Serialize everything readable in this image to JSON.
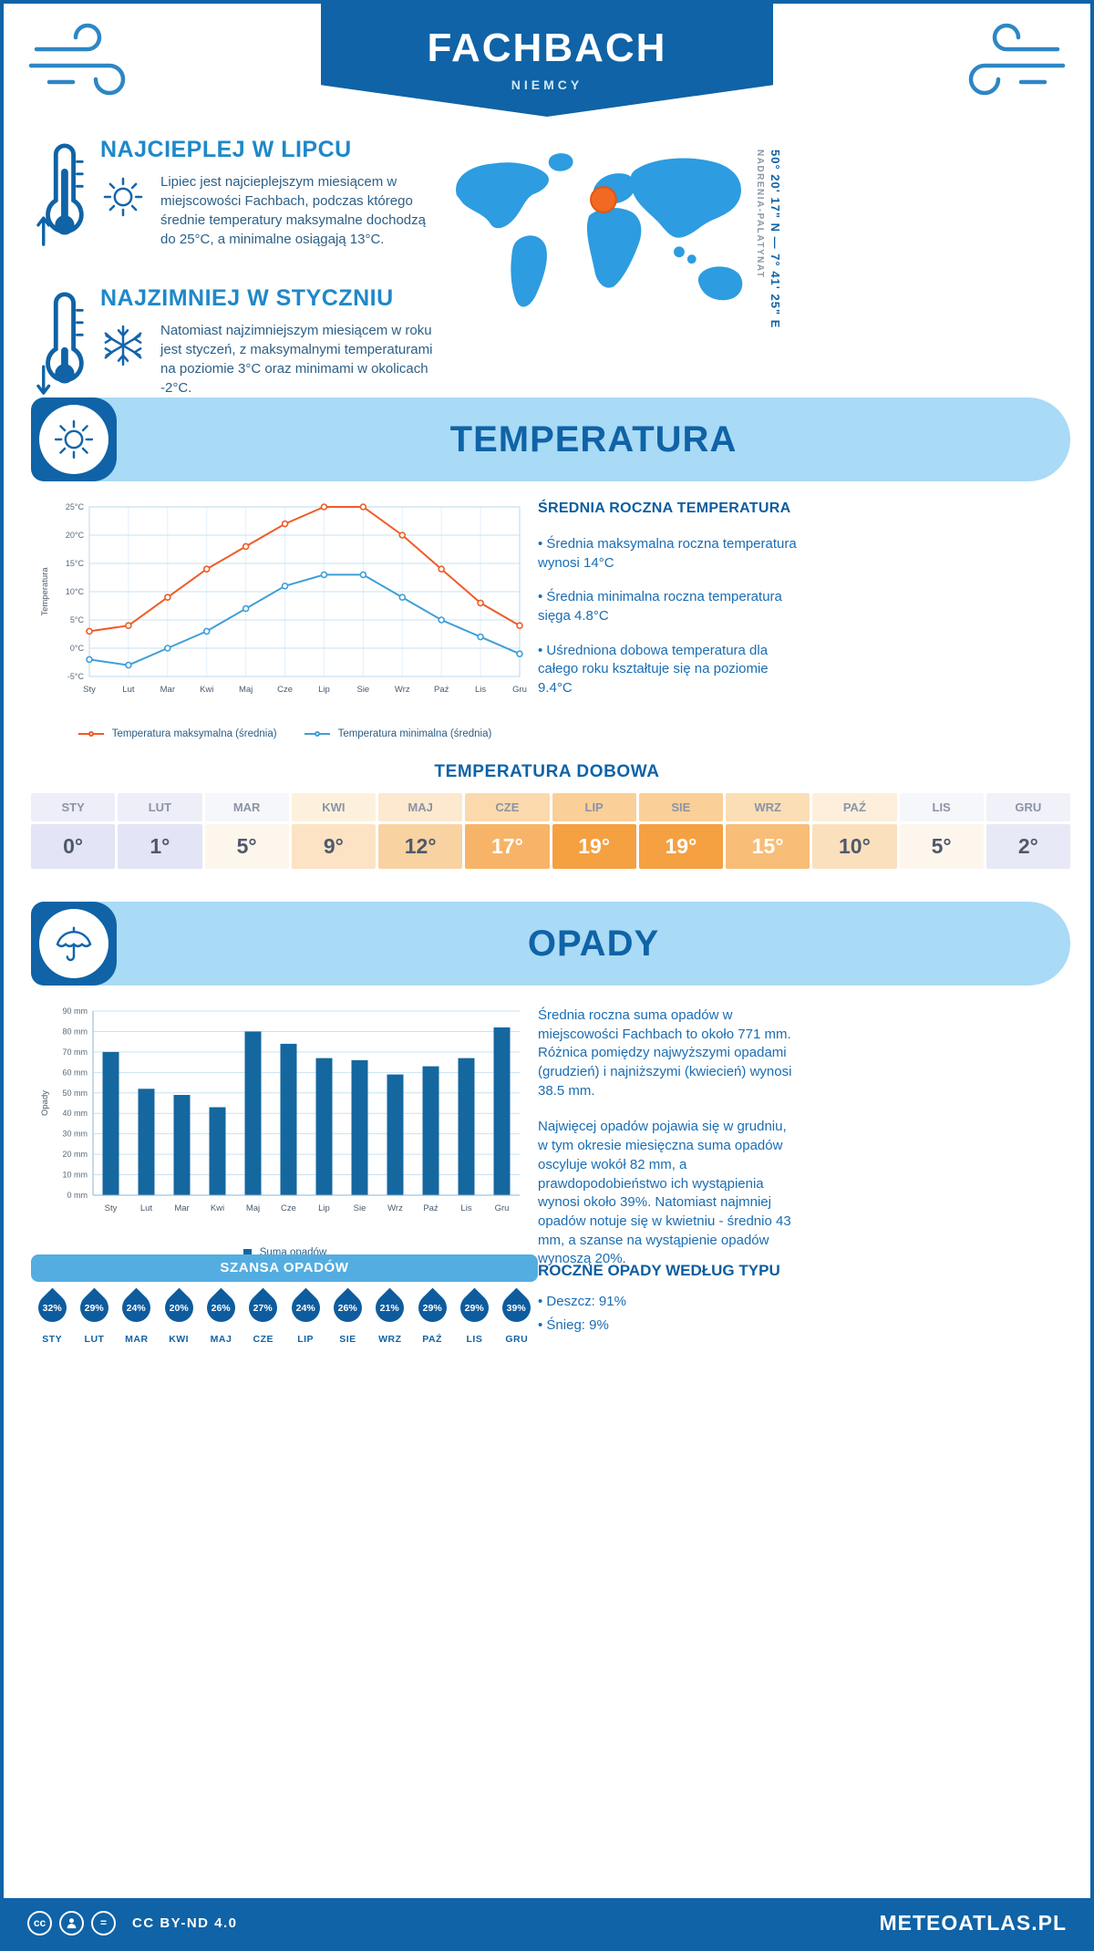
{
  "colors": {
    "primary": "#0f63a6",
    "heading_blue": "#1e88c9",
    "body_text": "#2d5f86",
    "paragraph_blue": "#1a6db3",
    "banner_light_blue": "#a9daf6",
    "chance_banner_blue": "#54ade0",
    "map_blue": "#2d9ce0",
    "marker_orange": "#f26a21"
  },
  "header": {
    "title": "FACHBACH",
    "subtitle": "NIEMCY"
  },
  "location": {
    "coordinates": "50° 20' 17\" N — 7° 41' 25\" E",
    "region": "NADRENIA-PALATYNAT"
  },
  "intro": {
    "warmest": {
      "title": "NAJCIEPLEJ W LIPCU",
      "text": "Lipiec jest najcieplejszym miesiącem w miejscowości Fachbach, podczas którego średnie temperatury maksymalne dochodzą do 25°C, a minimalne osiągają 13°C."
    },
    "coldest": {
      "title": "NAJZIMNIEJ W STYCZNIU",
      "text": "Natomiast najzimniejszym miesiącem w roku jest styczeń, z maksymalnymi temperaturami na poziomie 3°C oraz minimami w okolicach -2°C."
    }
  },
  "temperature": {
    "section_title": "TEMPERATURA",
    "summary_title": "ŚREDNIA ROCZNA TEMPERATURA",
    "bullets": [
      "• Średnia maksymalna roczna temperatura wynosi 14°C",
      "• Średnia minimalna roczna temperatura sięga 4.8°C",
      "• Uśredniona dobowa temperatura dla całego roku kształtuje się na poziomie 9.4°C"
    ],
    "daily": {
      "title": "TEMPERATURA DOBOWA",
      "cells": [
        {
          "month": "STY",
          "value": "0°",
          "bg": "#e3e4f5",
          "header_bg": "#edeef8",
          "text": "#4f596b"
        },
        {
          "month": "LUT",
          "value": "1°",
          "bg": "#e3e4f5",
          "header_bg": "#edeef8",
          "text": "#4f596b"
        },
        {
          "month": "MAR",
          "value": "5°",
          "bg": "#fdf6ec",
          "header_bg": "#f6f7fa",
          "text": "#4f596b"
        },
        {
          "month": "KWI",
          "value": "9°",
          "bg": "#fbe3c4",
          "header_bg": "#fdf1de",
          "text": "#4f596b"
        },
        {
          "month": "MAJ",
          "value": "12°",
          "bg": "#f9d2a2",
          "header_bg": "#fce9cf",
          "text": "#4f596b"
        },
        {
          "month": "CZE",
          "value": "17°",
          "bg": "#f7b468",
          "header_bg": "#fbd9ad",
          "text": "#ffffff"
        },
        {
          "month": "LIP",
          "value": "19°",
          "bg": "#f5a041",
          "header_bg": "#facf98",
          "text": "#ffffff"
        },
        {
          "month": "SIE",
          "value": "19°",
          "bg": "#f5a041",
          "header_bg": "#facf98",
          "text": "#ffffff"
        },
        {
          "month": "WRZ",
          "value": "15°",
          "bg": "#f8bd77",
          "header_bg": "#fbdeb5",
          "text": "#ffffff"
        },
        {
          "month": "PAŹ",
          "value": "10°",
          "bg": "#fbe0be",
          "header_bg": "#fdefdc",
          "text": "#4f596b"
        },
        {
          "month": "LIS",
          "value": "5°",
          "bg": "#fdf6ec",
          "header_bg": "#f6f7fa",
          "text": "#4f596b"
        },
        {
          "month": "GRU",
          "value": "2°",
          "bg": "#e8e9f6",
          "header_bg": "#f0f1f9",
          "text": "#4f596b"
        }
      ]
    }
  },
  "precipitation": {
    "section_title": "OPADY",
    "paragraphs": [
      "Średnia roczna suma opadów w miejscowości Fachbach to około 771 mm. Różnica pomiędzy najwyższymi opadami (grudzień) i najniższymi (kwiecień) wynosi 38.5 mm.",
      "Najwięcej opadów pojawia się w grudniu, w tym okresie miesięczna suma opadów oscyluje wokół 82 mm, a prawdopodobieństwo ich wystąpienia wynosi około 39%. Natomiast najmniej opadów notuje się w kwietniu - średnio 43 mm, a szanse na wystąpienie opadów wynoszą 20%."
    ],
    "chance_title": "SZANSA OPADÓW",
    "chance": [
      {
        "month": "STY",
        "value": "32%"
      },
      {
        "month": "LUT",
        "value": "29%"
      },
      {
        "month": "MAR",
        "value": "24%"
      },
      {
        "month": "KWI",
        "value": "20%"
      },
      {
        "month": "MAJ",
        "value": "26%"
      },
      {
        "month": "CZE",
        "value": "27%"
      },
      {
        "month": "LIP",
        "value": "24%"
      },
      {
        "month": "SIE",
        "value": "26%"
      },
      {
        "month": "WRZ",
        "value": "21%"
      },
      {
        "month": "PAŹ",
        "value": "29%"
      },
      {
        "month": "LIS",
        "value": "29%"
      },
      {
        "month": "GRU",
        "value": "39%"
      }
    ],
    "type_title": "ROCZNE OPADY WEDŁUG TYPU",
    "types": [
      "• Deszcz: 91%",
      "• Śnieg: 9%"
    ]
  },
  "footer": {
    "license": "CC BY-ND 4.0",
    "brand": "METEOATLAS.PL",
    "icon_cc": "cc",
    "icon_nd": "="
  },
  "chart_data": [
    {
      "type": "line",
      "title": "Temperatura",
      "x": [
        "Sty",
        "Lut",
        "Mar",
        "Kwi",
        "Maj",
        "Cze",
        "Lip",
        "Sie",
        "Wrz",
        "Paź",
        "Lis",
        "Gru"
      ],
      "ylabel": "Temperatura",
      "ylim": [
        -5,
        25
      ],
      "ytick_step": 5,
      "ytick_suffix": "°C",
      "grid": true,
      "legend_position": "bottom",
      "series": [
        {
          "name": "Temperatura maksymalna (średnia)",
          "color": "#f05b25",
          "values": [
            3,
            4,
            9,
            14,
            18,
            22,
            25,
            25,
            20,
            14,
            8,
            4
          ]
        },
        {
          "name": "Temperatura minimalna (średnia)",
          "color": "#3f9fd8",
          "values": [
            -2,
            -3,
            0,
            3,
            7,
            11,
            13,
            13,
            9,
            5,
            2,
            -1
          ]
        }
      ]
    },
    {
      "type": "bar",
      "categories": [
        "Sty",
        "Lut",
        "Mar",
        "Kwi",
        "Maj",
        "Cze",
        "Lip",
        "Sie",
        "Wrz",
        "Paź",
        "Lis",
        "Gru"
      ],
      "values": [
        70,
        52,
        49,
        43,
        80,
        74,
        67,
        66,
        59,
        63,
        67,
        82
      ],
      "ylabel": "Opady",
      "ylim": [
        0,
        90
      ],
      "ytick_step": 10,
      "ytick_suffix": " mm",
      "bar_color": "#14679f",
      "legend": "Suma opadów",
      "grid": true
    }
  ]
}
